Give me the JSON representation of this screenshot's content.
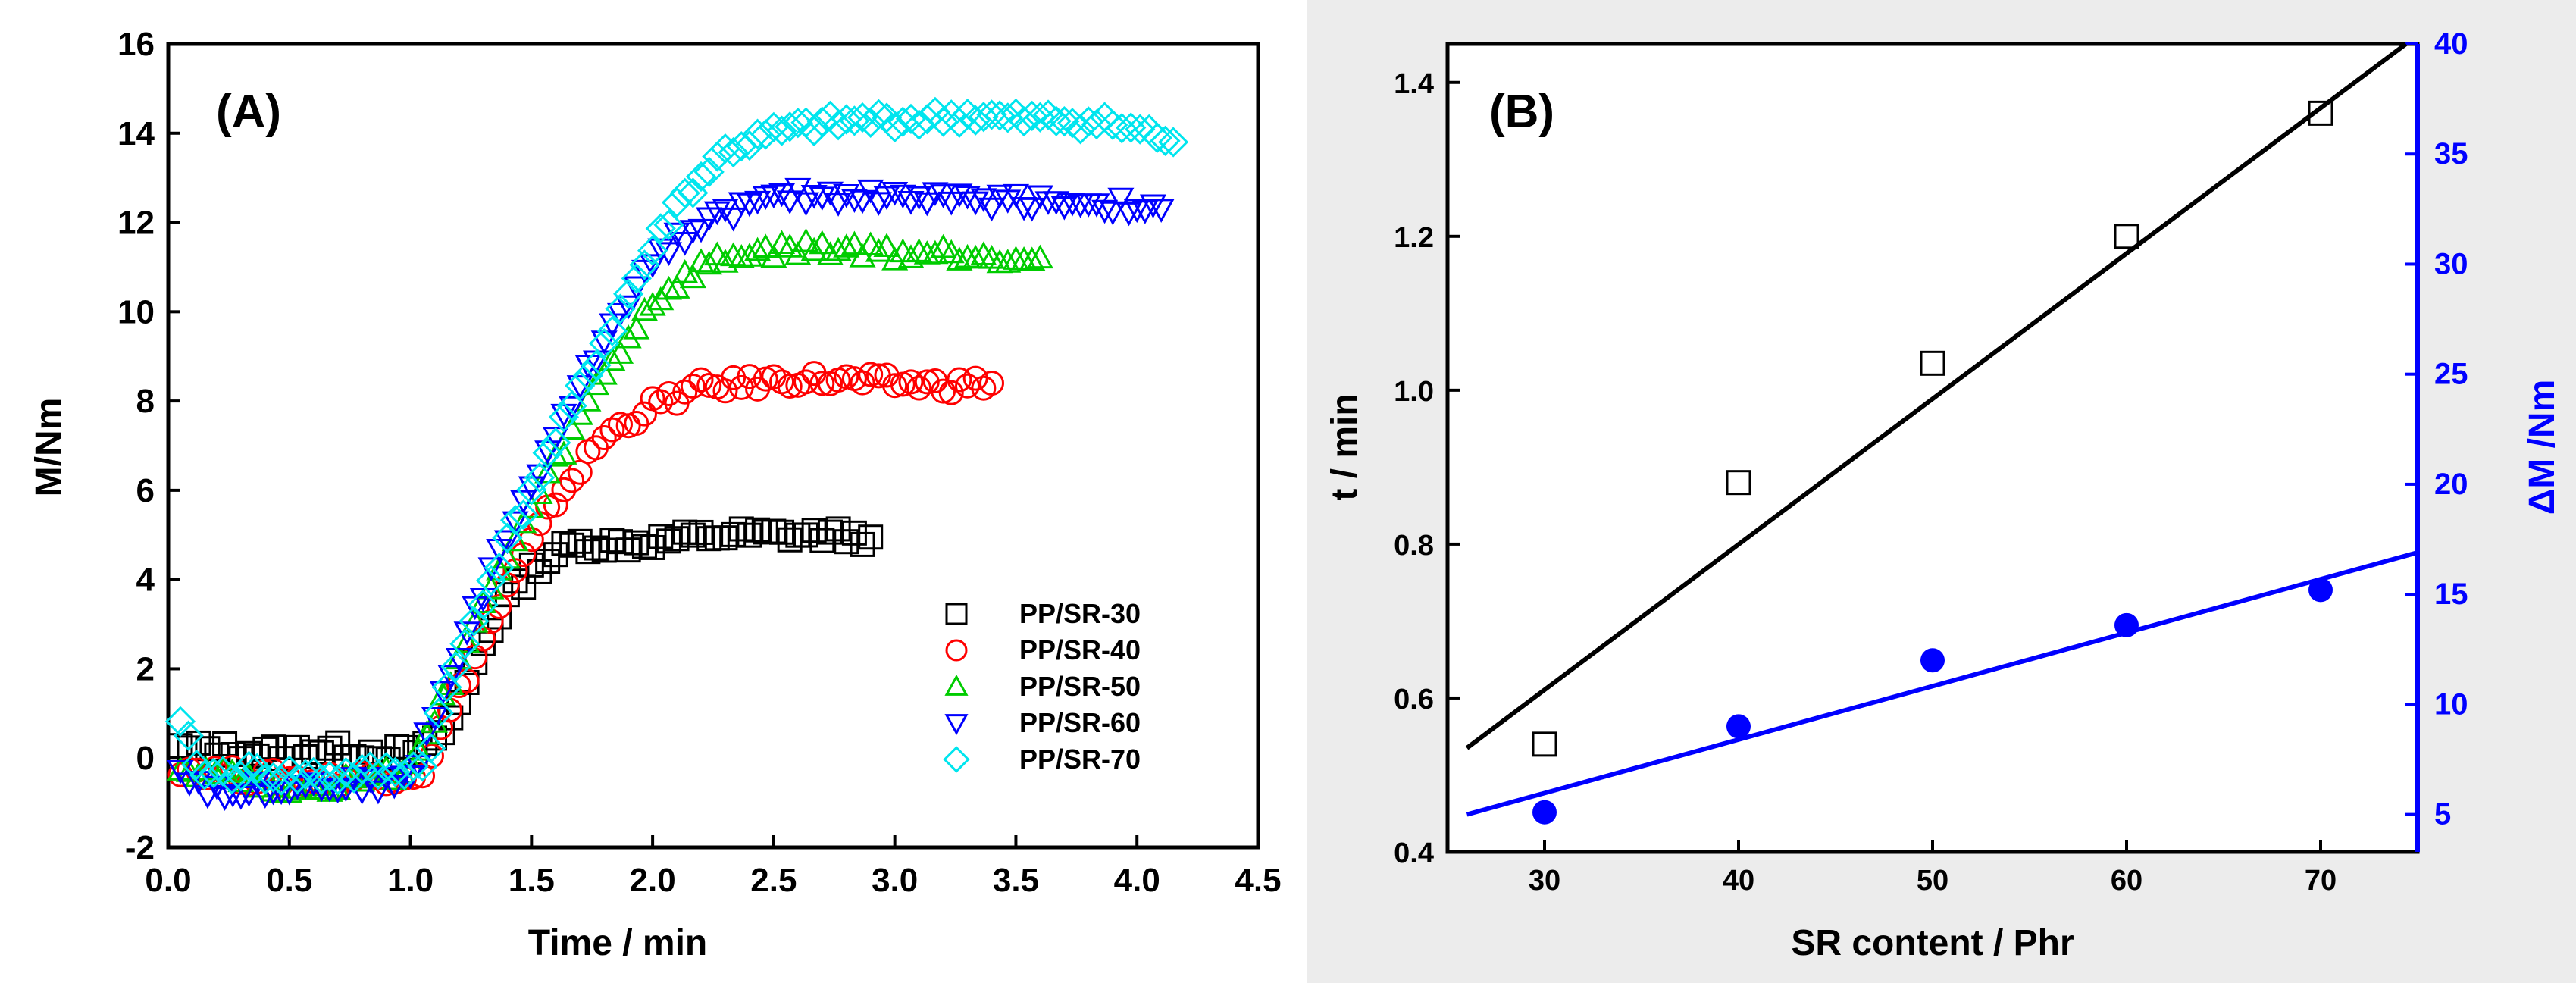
{
  "chart_data": [
    {
      "panel": "(A)",
      "type": "scatter",
      "xlabel": "Time / min",
      "ylabel": "M/Nm",
      "xlim": [
        0.0,
        4.5
      ],
      "ylim": [
        -2,
        16
      ],
      "xticks": [
        "0.0",
        "0.5",
        "1.0",
        "1.5",
        "2.0",
        "2.5",
        "3.0",
        "3.5",
        "4.0",
        "4.5"
      ],
      "yticks": [
        "-2",
        "0",
        "2",
        "4",
        "6",
        "8",
        "10",
        "12",
        "14",
        "16"
      ],
      "legend_position": "lower-right",
      "series": [
        {
          "name": "PP/SR-30",
          "color": "#000000",
          "marker": "square",
          "points": [
            [
              0.05,
              0.2
            ],
            [
              0.2,
              0.2
            ],
            [
              0.4,
              0.1
            ],
            [
              0.6,
              0.2
            ],
            [
              0.8,
              0.15
            ],
            [
              0.98,
              0.1
            ],
            [
              1.1,
              0.3
            ],
            [
              1.2,
              1.2
            ],
            [
              1.3,
              2.6
            ],
            [
              1.4,
              3.6
            ],
            [
              1.5,
              4.2
            ],
            [
              1.6,
              4.6
            ],
            [
              1.7,
              4.8
            ],
            [
              1.9,
              4.8
            ],
            [
              2.1,
              4.9
            ],
            [
              2.3,
              5.0
            ],
            [
              2.5,
              5.0
            ],
            [
              2.7,
              5.0
            ],
            [
              2.9,
              4.95
            ]
          ]
        },
        {
          "name": "PP/SR-40",
          "color": "#ff0000",
          "marker": "circle",
          "points": [
            [
              0.05,
              -0.2
            ],
            [
              0.3,
              -0.4
            ],
            [
              0.6,
              -0.5
            ],
            [
              0.9,
              -0.4
            ],
            [
              1.05,
              -0.3
            ],
            [
              1.2,
              1.5
            ],
            [
              1.4,
              3.8
            ],
            [
              1.6,
              5.8
            ],
            [
              1.8,
              7.2
            ],
            [
              2.0,
              7.9
            ],
            [
              2.2,
              8.3
            ],
            [
              2.4,
              8.4
            ],
            [
              2.6,
              8.5
            ],
            [
              2.8,
              8.45
            ],
            [
              3.0,
              8.4
            ],
            [
              3.2,
              8.35
            ],
            [
              3.4,
              8.4
            ]
          ]
        },
        {
          "name": "PP/SR-50",
          "color": "#00cc00",
          "marker": "triangle-up",
          "points": [
            [
              0.05,
              -0.2
            ],
            [
              0.3,
              -0.4
            ],
            [
              0.5,
              -0.7
            ],
            [
              0.8,
              -0.5
            ],
            [
              1.0,
              -0.3
            ],
            [
              1.2,
              2.2
            ],
            [
              1.4,
              4.5
            ],
            [
              1.6,
              6.6
            ],
            [
              1.8,
              8.6
            ],
            [
              2.0,
              10.2
            ],
            [
              2.2,
              11.0
            ],
            [
              2.4,
              11.3
            ],
            [
              2.6,
              11.4
            ],
            [
              2.8,
              11.4
            ],
            [
              3.0,
              11.3
            ],
            [
              3.2,
              11.3
            ],
            [
              3.4,
              11.25
            ],
            [
              3.6,
              11.2
            ]
          ]
        },
        {
          "name": "PP/SR-60",
          "color": "#0000ff",
          "marker": "triangle-down",
          "points": [
            [
              0.05,
              -0.3
            ],
            [
              0.2,
              -0.8
            ],
            [
              0.5,
              -0.6
            ],
            [
              0.8,
              -0.6
            ],
            [
              1.0,
              -0.5
            ],
            [
              1.2,
              2.4
            ],
            [
              1.4,
              5.0
            ],
            [
              1.6,
              7.2
            ],
            [
              1.8,
              9.4
            ],
            [
              2.0,
              11.2
            ],
            [
              2.2,
              12.0
            ],
            [
              2.4,
              12.4
            ],
            [
              2.6,
              12.6
            ],
            [
              2.8,
              12.6
            ],
            [
              3.0,
              12.6
            ],
            [
              3.3,
              12.5
            ],
            [
              3.6,
              12.5
            ],
            [
              3.9,
              12.4
            ],
            [
              4.1,
              12.3
            ]
          ]
        },
        {
          "name": "PP/SR-70",
          "color": "#00e5ee",
          "marker": "diamond",
          "points": [
            [
              0.05,
              0.7
            ],
            [
              0.15,
              -0.4
            ],
            [
              0.3,
              -0.3
            ],
            [
              0.5,
              -0.4
            ],
            [
              0.7,
              -0.4
            ],
            [
              0.9,
              -0.3
            ],
            [
              1.05,
              -0.2
            ],
            [
              1.15,
              1.5
            ],
            [
              1.3,
              3.6
            ],
            [
              1.5,
              6.0
            ],
            [
              1.7,
              8.2
            ],
            [
              1.9,
              10.4
            ],
            [
              2.1,
              12.4
            ],
            [
              2.3,
              13.6
            ],
            [
              2.5,
              14.0
            ],
            [
              2.7,
              14.2
            ],
            [
              2.9,
              14.3
            ],
            [
              3.1,
              14.3
            ],
            [
              3.3,
              14.4
            ],
            [
              3.5,
              14.3
            ],
            [
              3.7,
              14.3
            ],
            [
              3.9,
              14.2
            ],
            [
              4.05,
              14.0
            ],
            [
              4.15,
              13.8
            ]
          ]
        }
      ]
    },
    {
      "panel": "(B)",
      "type": "scatter",
      "xlabel": "SR content / Phr",
      "ylabel": "t / min",
      "y2label": "ΔM /Nm",
      "xlim": [
        25,
        75
      ],
      "ylim": [
        0.4,
        1.45
      ],
      "y2lim": [
        3.3,
        40
      ],
      "xticks": [
        "30",
        "40",
        "50",
        "60",
        "70"
      ],
      "yticks": [
        "0.4",
        "0.6",
        "0.8",
        "1.0",
        "1.2",
        "1.4"
      ],
      "y2ticks": [
        "5",
        "10",
        "15",
        "20",
        "25",
        "30",
        "35",
        "40"
      ],
      "series": [
        {
          "name": "t",
          "axis": "left",
          "color": "#000000",
          "marker": "open-square",
          "x": [
            30,
            40,
            50,
            60,
            70
          ],
          "y": [
            0.54,
            0.88,
            1.035,
            1.2,
            1.36
          ]
        },
        {
          "name": "ΔM",
          "axis": "right",
          "color": "#0000ff",
          "marker": "filled-circle",
          "x": [
            30,
            40,
            50,
            60,
            70
          ],
          "y": [
            5.1,
            9.0,
            12.0,
            13.6,
            15.2
          ]
        }
      ],
      "fit_lines": [
        {
          "axis": "left",
          "color": "#000000",
          "x": [
            26,
            74.4
          ],
          "y": [
            0.535,
            1.45
          ]
        },
        {
          "axis": "right",
          "color": "#0000ff",
          "x": [
            26,
            75
          ],
          "y": [
            5.0,
            16.9
          ]
        }
      ]
    }
  ]
}
